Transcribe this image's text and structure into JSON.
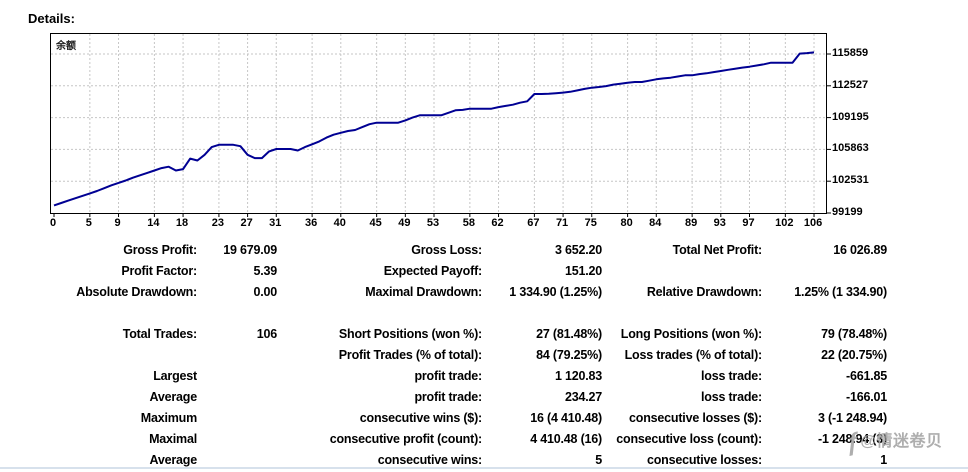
{
  "heading": "Details:",
  "colors": {
    "line": "#000093",
    "grid": "#c6c6c6",
    "frame": "#000000",
    "tick": "#000000",
    "watermark": "#a6a6a6",
    "separator": "#d7e1ec"
  },
  "chart_data": {
    "type": "line",
    "title": "余额",
    "xlabel": "",
    "ylabel": "",
    "grid": true,
    "legend_position": "top-left-inside",
    "x_ticks": [
      0,
      5,
      9,
      14,
      18,
      23,
      27,
      31,
      36,
      40,
      45,
      49,
      53,
      58,
      62,
      67,
      71,
      75,
      80,
      84,
      89,
      93,
      97,
      102,
      106
    ],
    "y_ticks": [
      99199,
      102531,
      105863,
      109195,
      112527,
      115859
    ],
    "xlim": [
      0,
      107.7
    ],
    "ylim": [
      99199,
      117960
    ],
    "series": [
      {
        "name": "余额",
        "x_step": 1,
        "values": [
          100000,
          100250,
          100500,
          100750,
          101000,
          101250,
          101500,
          101800,
          102100,
          102350,
          102600,
          102900,
          103150,
          103400,
          103650,
          103900,
          104050,
          103650,
          103800,
          104900,
          104700,
          105300,
          106100,
          106350,
          106350,
          106350,
          106200,
          105300,
          104950,
          104950,
          105650,
          105900,
          105900,
          105900,
          105750,
          106100,
          106400,
          106700,
          107100,
          107400,
          107600,
          107790,
          107900,
          108200,
          108500,
          108660,
          108660,
          108660,
          108660,
          108900,
          109190,
          109440,
          109440,
          109440,
          109440,
          109700,
          109960,
          110000,
          110130,
          110130,
          110130,
          110130,
          110300,
          110420,
          110550,
          110760,
          110900,
          111670,
          111670,
          111700,
          111750,
          111810,
          111900,
          112050,
          112200,
          112330,
          112400,
          112500,
          112650,
          112750,
          112850,
          112930,
          112930,
          113060,
          113210,
          113300,
          113380,
          113500,
          113630,
          113630,
          113750,
          113840,
          113960,
          114080,
          114200,
          114320,
          114430,
          114530,
          114650,
          114780,
          114950,
          114950,
          114950,
          114950,
          115900,
          115950,
          116027
        ]
      }
    ]
  },
  "stats": {
    "groups": [
      {
        "rows": [
          {
            "cells": [
              "Gross Profit:",
              "19 679.09",
              "Gross Loss:",
              "3 652.20",
              "Total Net Profit:",
              "16 026.89"
            ]
          },
          {
            "cells": [
              "Profit Factor:",
              "5.39",
              "Expected Payoff:",
              "151.20",
              "",
              ""
            ]
          },
          {
            "cells": [
              "Absolute Drawdown:",
              "0.00",
              "Maximal Drawdown:",
              "1 334.90 (1.25%)",
              "Relative Drawdown:",
              "1.25% (1 334.90)"
            ]
          }
        ]
      },
      {
        "rows": [
          {
            "cells": [
              "Total Trades:",
              "106",
              "Short Positions (won %):",
              "27 (81.48%)",
              "Long Positions (won %):",
              "79 (78.48%)"
            ]
          },
          {
            "cells": [
              "",
              "",
              "Profit Trades (% of total):",
              "84 (79.25%)",
              "Loss trades (% of total):",
              "22 (20.75%)"
            ]
          },
          {
            "cells": [
              "Largest",
              "",
              "profit trade:",
              "1 120.83",
              "loss trade:",
              "-661.85"
            ]
          },
          {
            "cells": [
              "Average",
              "",
              "profit trade:",
              "234.27",
              "loss trade:",
              "-166.01"
            ]
          },
          {
            "cells": [
              "Maximum",
              "",
              "consecutive wins ($):",
              "16 (4 410.48)",
              "consecutive losses ($):",
              "3 (-1 248.94)"
            ]
          },
          {
            "cells": [
              "Maximal",
              "",
              "consecutive profit (count):",
              "4 410.48 (16)",
              "consecutive loss (count):",
              "-1 248.94 (3)"
            ]
          },
          {
            "cells": [
              "Average",
              "",
              "consecutive wins:",
              "5",
              "consecutive losses:",
              "1"
            ]
          }
        ]
      }
    ]
  },
  "watermark": {
    "sig": "ƒ",
    "text": "@情迷卷贝"
  }
}
